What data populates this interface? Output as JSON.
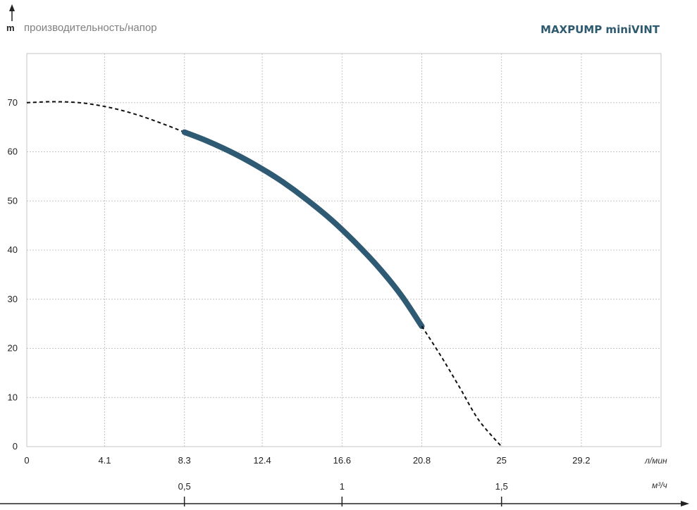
{
  "chart_data": {
    "type": "line",
    "title": "MAXPUMP miniVINT",
    "subtitle": "производительность/напор",
    "ylabel": "m",
    "xlabel": "л/мин",
    "secondary_xlabel": "м³/ч",
    "x_ticks": [
      "0",
      "4.1",
      "8.3",
      "12.4",
      "16.6",
      "20.8",
      "25",
      "29.2"
    ],
    "secondary_x_ticks": [
      "0,5",
      "1",
      "1,5"
    ],
    "secondary_x_values": [
      8.3,
      16.6,
      25
    ],
    "y_ticks": [
      "0",
      "10",
      "20",
      "30",
      "40",
      "50",
      "60",
      "70"
    ],
    "xlim": [
      0,
      33.4
    ],
    "ylim": [
      0,
      80
    ],
    "grid": true,
    "colors": {
      "working_range": "#2f5a73",
      "extrapolated": "#111111",
      "grid": "#c4c4c4",
      "brand": "#2e5a70"
    },
    "series": [
      {
        "style": "dashed",
        "x": [
          0,
          1.5,
          3.0,
          4.5,
          6.0,
          7.5,
          8.3
        ],
        "y": [
          70,
          70.2,
          69.9,
          68.9,
          67.3,
          65.2,
          64.0
        ]
      },
      {
        "style": "solid-thick",
        "x": [
          8.3,
          9.5,
          11.0,
          12.4,
          13.5,
          14.7,
          16.0,
          17.2,
          18.5,
          19.7,
          20.8
        ],
        "y": [
          64.0,
          62.2,
          59.5,
          56.5,
          53.8,
          50.4,
          46.3,
          41.9,
          36.6,
          30.9,
          24.5
        ]
      },
      {
        "style": "dashed",
        "x": [
          20.8,
          21.8,
          22.8,
          23.8,
          25.0
        ],
        "y": [
          24.5,
          18.5,
          12.0,
          5.4,
          0
        ]
      }
    ]
  }
}
